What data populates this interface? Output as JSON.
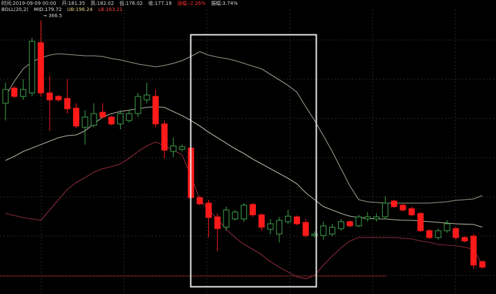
{
  "chart_data": {
    "type": "candlestick",
    "info": [
      "时间:2019-09-09 00:00",
      "开:181.35",
      "高:182.02",
      "低:176.02",
      "收:177.19",
      "涨幅:-2.26%",
      "振幅:3.74%"
    ],
    "indicator": [
      "BOLL(20,2)",
      "MID:179.72",
      "UB:196.24",
      "LB:163.21"
    ],
    "annotation": "→ 366.5",
    "ylim": [
      130,
      340
    ],
    "grid": true,
    "up_color": "#3fa34d",
    "down_color": "#ff1a1a",
    "open": [
      265,
      276,
      270,
      272.5,
      309,
      272.5,
      270,
      268.5,
      261.5,
      247.5,
      249,
      258.5,
      255,
      250,
      252.5,
      257.5,
      267.5,
      270,
      250,
      230,
      231.5,
      232.5,
      196.5,
      192.5,
      182.5,
      175,
      181,
      181,
      191.5,
      184,
      173.5,
      170,
      179,
      182.5,
      178.5,
      169,
      169,
      170,
      174,
      179,
      176,
      181,
      181,
      182.5,
      194,
      191,
      188.5,
      185,
      172.5,
      167.5,
      172.5,
      174,
      167.5,
      168.5,
      150
    ],
    "high": [
      280,
      277.5,
      282.5,
      312.5,
      325,
      285,
      271,
      282.5,
      265,
      260,
      265,
      265,
      256,
      260,
      260,
      272.5,
      280,
      275,
      252.5,
      240,
      235,
      234,
      197.5,
      195,
      185,
      190,
      187.5,
      192.5,
      192.5,
      185,
      181,
      182.5,
      187.5,
      183.5,
      181,
      172,
      179,
      177.5,
      181,
      180,
      184,
      186,
      185,
      197.5,
      195,
      192,
      190,
      186,
      173.5,
      174,
      180,
      175,
      168.5,
      170,
      151
    ],
    "low": [
      252.5,
      269,
      267.5,
      270,
      270,
      245,
      266,
      257.5,
      247,
      235,
      247.5,
      254,
      249,
      246,
      251,
      255,
      265,
      247.5,
      225,
      226,
      230,
      195,
      191,
      167.5,
      157.5,
      172.5,
      180,
      179,
      182.5,
      172.5,
      170,
      164,
      177.5,
      176.5,
      167.5,
      167.5,
      166,
      168.5,
      172.5,
      175,
      175,
      179,
      179,
      181,
      189,
      186.5,
      183,
      171.5,
      166.5,
      166,
      171,
      166,
      164,
      145,
      145
    ],
    "close": [
      275,
      270,
      275,
      310,
      272.5,
      267.5,
      267.5,
      261,
      248.5,
      255,
      257.5,
      255,
      250,
      257.5,
      257.5,
      270,
      271,
      250,
      231,
      234,
      233.5,
      196.5,
      192,
      182,
      174,
      187.5,
      186,
      191,
      184,
      175,
      177.5,
      180,
      183,
      177.5,
      169,
      170,
      176,
      175,
      179,
      176,
      182.5,
      182.5,
      182.5,
      192.5,
      190,
      187.5,
      184,
      172.5,
      167.5,
      172.5,
      177.5,
      167.5,
      165,
      147.5,
      146
    ],
    "series": [
      {
        "name": "UB",
        "color": "#9a9a8a",
        "values": [
          270,
          281,
          290,
          295,
          298,
          300,
          301,
          300.5,
          300,
          299.5,
          299.5,
          299,
          297.5,
          296.5,
          295,
          293.5,
          292.5,
          291.5,
          292.5,
          294,
          296,
          299,
          302.5,
          300,
          298.5,
          297.5,
          296,
          294,
          292,
          290,
          286,
          282,
          278,
          273,
          262.5,
          252.5,
          241.5,
          230,
          217.5,
          205,
          195,
          193.5,
          193,
          192.5,
          192.5,
          192.5,
          192.5,
          192.5,
          192.5,
          193,
          193.5,
          194.5,
          195,
          195.5,
          198
        ]
      },
      {
        "name": "MID",
        "color": "#b5b5a5",
        "values": [
          223.5,
          226.5,
          230,
          232.5,
          235,
          237.5,
          240,
          241.5,
          242,
          245,
          250,
          255,
          257.5,
          259,
          260,
          261,
          262,
          262.5,
          262,
          259,
          256,
          252.5,
          248.5,
          244,
          240,
          236,
          232,
          228.5,
          224.5,
          221,
          217.5,
          214,
          210.5,
          206.5,
          200,
          195,
          190,
          187.5,
          185,
          183,
          182,
          181.5,
          181,
          181,
          180.5,
          180,
          180,
          179.5,
          179,
          178.5,
          178,
          177.5,
          177.2,
          177,
          175
        ]
      },
      {
        "name": "LB",
        "color": "#8a2a3a",
        "values": [
          185,
          183.5,
          182,
          181,
          180,
          187.5,
          195,
          202.5,
          207.5,
          211,
          215,
          217.5,
          219,
          221,
          225,
          230,
          234,
          237,
          234,
          231,
          227.5,
          212.5,
          195,
          187.5,
          181,
          173.5,
          167.5,
          162.5,
          159,
          155,
          150,
          146,
          142.5,
          139,
          137.5,
          140,
          147.5,
          154,
          160,
          165,
          167.5,
          167.5,
          167.5,
          167.5,
          167.5,
          167,
          166.5,
          165,
          164,
          162.5,
          162,
          161.5,
          160.5,
          159,
          147.5
        ]
      }
    ]
  }
}
